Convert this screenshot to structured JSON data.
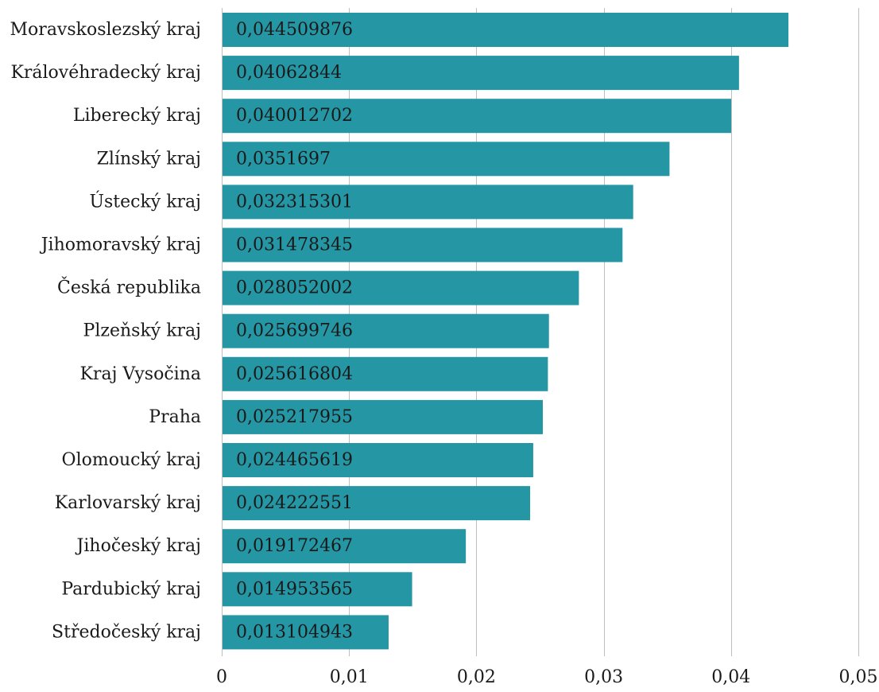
{
  "chart_data": {
    "type": "bar",
    "orientation": "horizontal",
    "categories": [
      "Moravskoslezský kraj",
      "Královéhradecký kraj",
      "Liberecký kraj",
      "Zlínský kraj",
      "Ústecký kraj",
      "Jihomoravský kraj",
      "Česká republika",
      "Plzeňský kraj",
      "Kraj Vysočina",
      "Praha",
      "Olomoucký kraj",
      "Karlovarský kraj",
      "Jihočeský kraj",
      "Pardubický kraj",
      "Středočeský kraj"
    ],
    "values": [
      0.044509876,
      0.04062844,
      0.040012702,
      0.0351697,
      0.032315301,
      0.031478345,
      0.028052002,
      0.025699746,
      0.025616804,
      0.025217955,
      0.024465619,
      0.024222551,
      0.019172467,
      0.014953565,
      0.013104943
    ],
    "value_labels": [
      "0,044509876",
      "0,04062844",
      "0,040012702",
      "0,0351697",
      "0,032315301",
      "0,031478345",
      "0,028052002",
      "0,025699746",
      "0,025616804",
      "0,025217955",
      "0,024465619",
      "0,024222551",
      "0,019172467",
      "0,014953565",
      "0,013104943"
    ],
    "xlim": [
      0,
      0.05
    ],
    "x_ticks": [
      0,
      0.01,
      0.02,
      0.03,
      0.04,
      0.05
    ],
    "x_tick_labels": [
      "0",
      "0,01",
      "0,02",
      "0,03",
      "0,04",
      "0,05"
    ],
    "grid": "vertical",
    "bar_color": "#2596A4",
    "title": "",
    "xlabel": "",
    "ylabel": ""
  }
}
